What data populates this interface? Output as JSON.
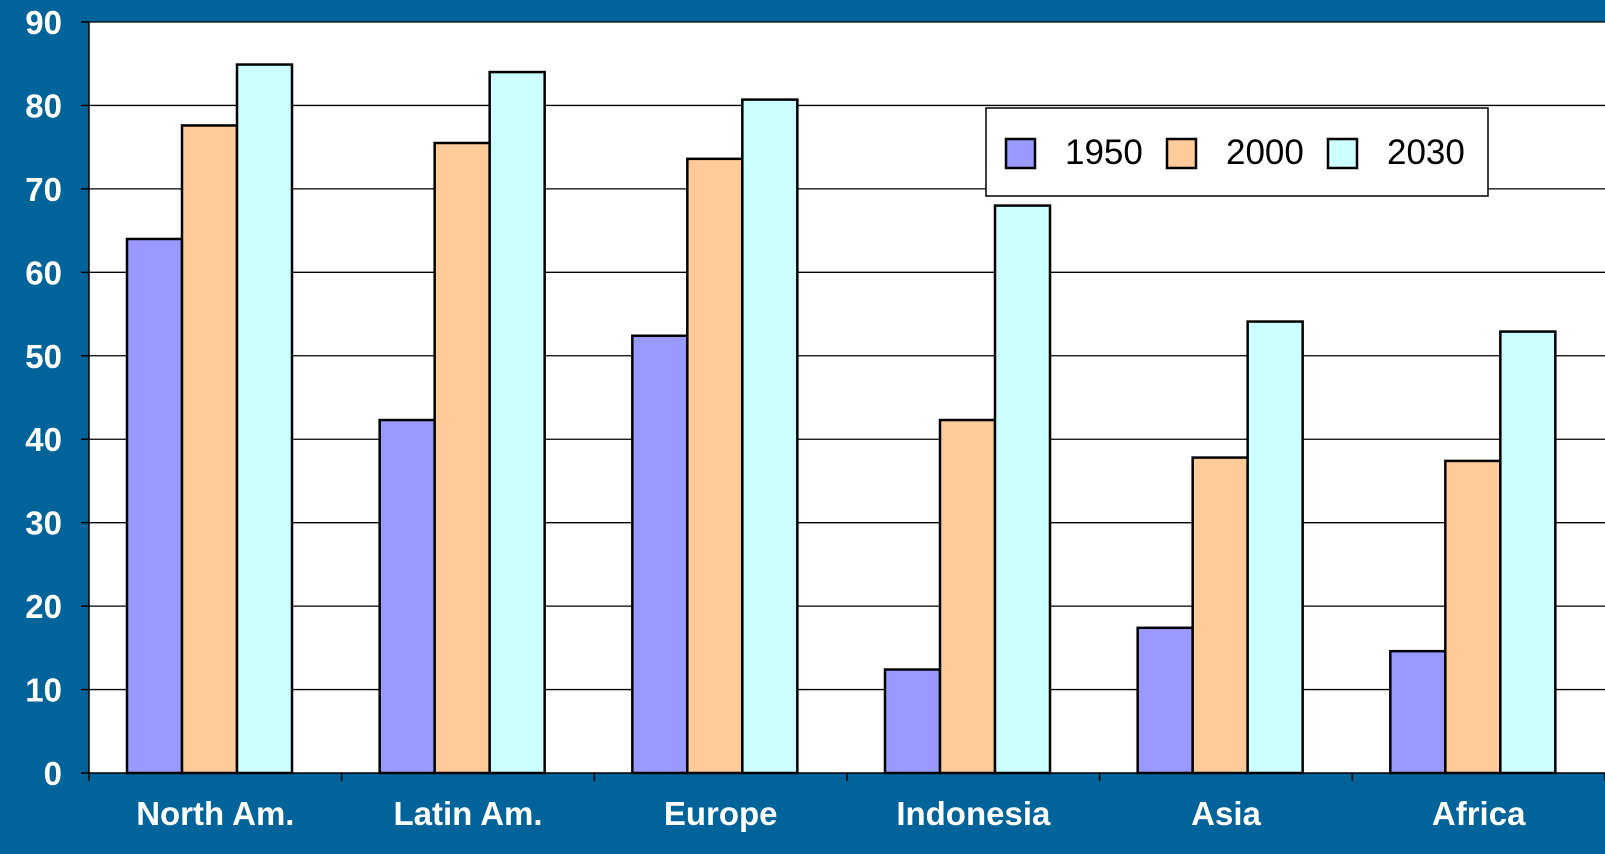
{
  "chart_data": {
    "type": "bar",
    "title": "",
    "xlabel": "",
    "ylabel": "",
    "categories": [
      "North Am.",
      "Latin Am.",
      "Europe",
      "Indonesia",
      "Asia",
      "Africa"
    ],
    "series": [
      {
        "name": "1950",
        "values": [
          64,
          42.3,
          52.4,
          12.4,
          17.4,
          14.6
        ],
        "color": "#9999ff"
      },
      {
        "name": "2000",
        "values": [
          77.6,
          75.5,
          73.6,
          42.3,
          37.8,
          37.4
        ],
        "color": "#ffcc99"
      },
      {
        "name": "2030",
        "values": [
          84.9,
          84,
          80.7,
          68,
          54.1,
          52.9
        ],
        "color": "#ccffff"
      }
    ],
    "ylim": [
      0,
      90
    ],
    "yticks": [
      0,
      10,
      20,
      30,
      40,
      50,
      60,
      70,
      80,
      90
    ],
    "grid": true,
    "legend": "top-right",
    "colors": {
      "background": "#00639a",
      "plot_area": "#ffffff",
      "gridline": "#000000",
      "axis_text": "#ffffff"
    }
  }
}
